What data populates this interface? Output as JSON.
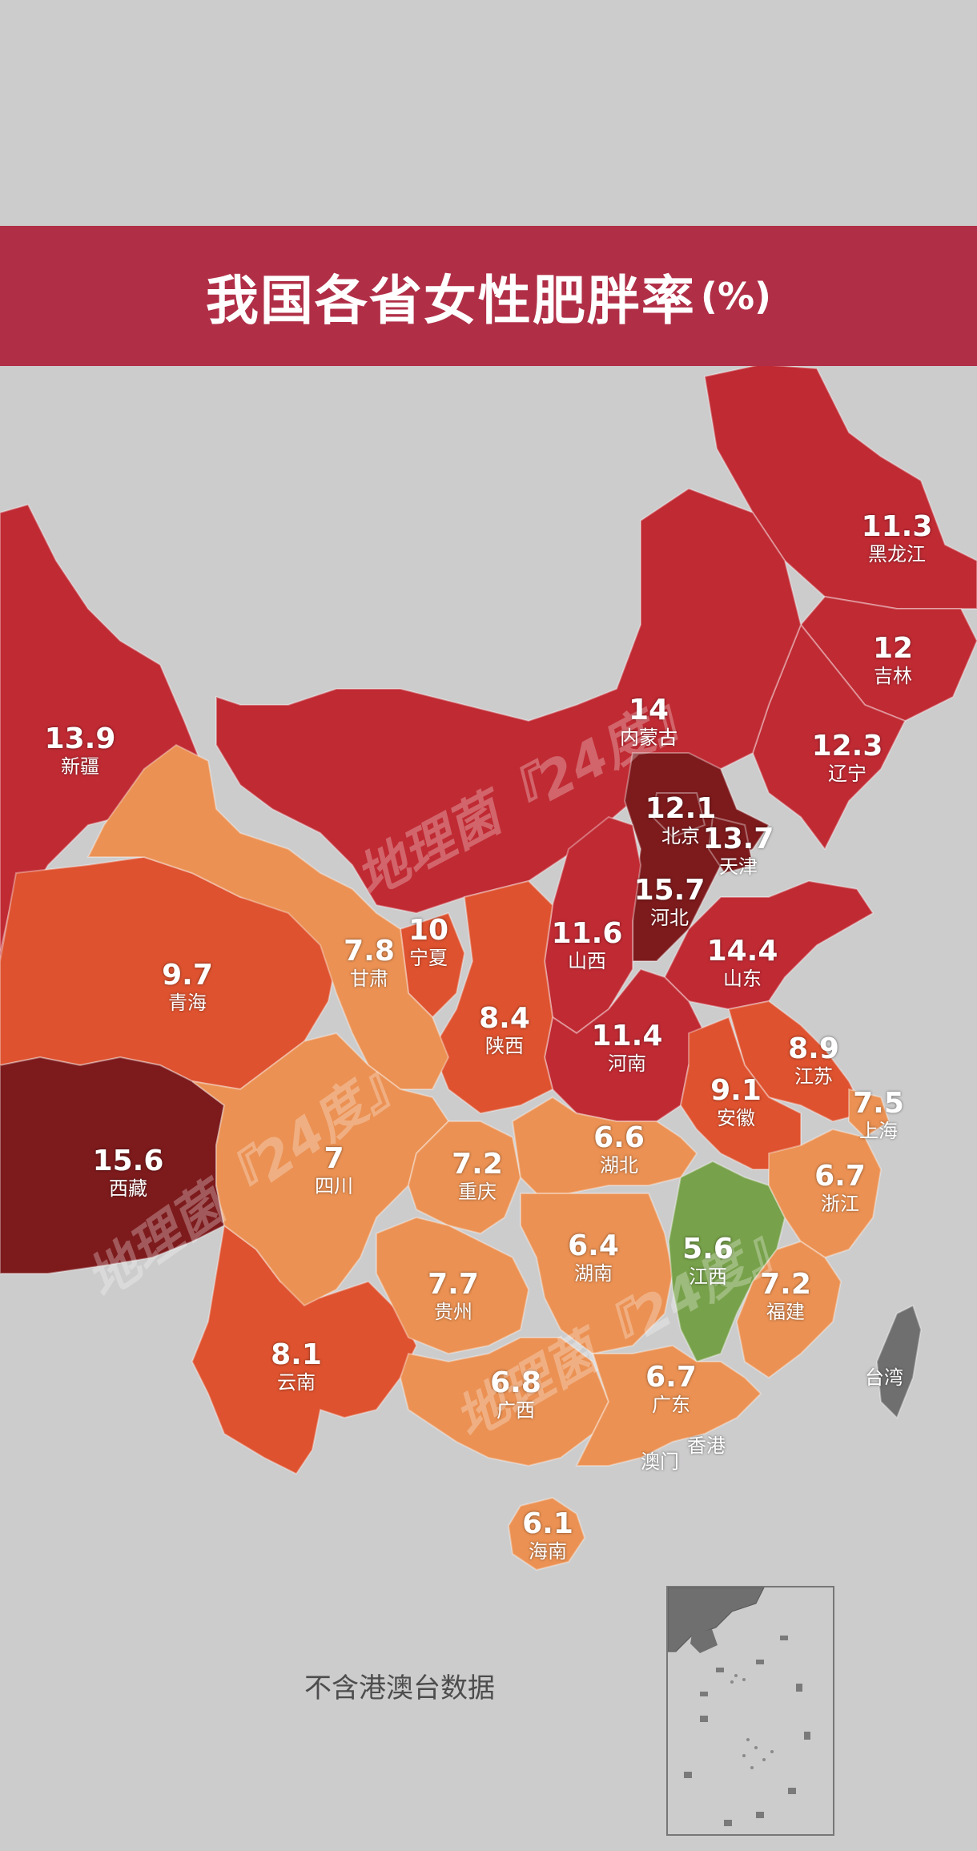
{
  "title": "我国各省女性肥胖率",
  "unit": "(%)",
  "note": "不含港澳台数据",
  "watermark": "地理菌『24度』",
  "colors": {
    "background": "#cdcccd",
    "banner": "#b02f47",
    "very_high": "#7d1a1c",
    "high": "#c02a33",
    "mid": "#de522f",
    "low": "#eb9153",
    "lowest": "#77a14a",
    "no_data": "#6f6f6f"
  },
  "provinces": [
    {
      "name": "黑龙江",
      "value": "11.3",
      "tier": "high"
    },
    {
      "name": "吉林",
      "value": "12",
      "tier": "high"
    },
    {
      "name": "辽宁",
      "value": "12.3",
      "tier": "high"
    },
    {
      "name": "内蒙古",
      "value": "14",
      "tier": "high"
    },
    {
      "name": "新疆",
      "value": "13.9",
      "tier": "high"
    },
    {
      "name": "北京",
      "value": "12.1",
      "tier": "very_high"
    },
    {
      "name": "天津",
      "value": "13.7",
      "tier": "very_high"
    },
    {
      "name": "河北",
      "value": "15.7",
      "tier": "very_high"
    },
    {
      "name": "山西",
      "value": "11.6",
      "tier": "high"
    },
    {
      "name": "山东",
      "value": "14.4",
      "tier": "high"
    },
    {
      "name": "宁夏",
      "value": "10",
      "tier": "mid"
    },
    {
      "name": "甘肃",
      "value": "7.8",
      "tier": "low"
    },
    {
      "name": "青海",
      "value": "9.7",
      "tier": "mid"
    },
    {
      "name": "陕西",
      "value": "8.4",
      "tier": "mid"
    },
    {
      "name": "河南",
      "value": "11.4",
      "tier": "high"
    },
    {
      "name": "江苏",
      "value": "8.9",
      "tier": "mid"
    },
    {
      "name": "安徽",
      "value": "9.1",
      "tier": "mid"
    },
    {
      "name": "上海",
      "value": "7.5",
      "tier": "low"
    },
    {
      "name": "西藏",
      "value": "15.6",
      "tier": "very_high"
    },
    {
      "name": "四川",
      "value": "7",
      "tier": "low"
    },
    {
      "name": "重庆",
      "value": "7.2",
      "tier": "low"
    },
    {
      "name": "湖北",
      "value": "6.6",
      "tier": "low"
    },
    {
      "name": "浙江",
      "value": "6.7",
      "tier": "low"
    },
    {
      "name": "湖南",
      "value": "6.4",
      "tier": "low"
    },
    {
      "name": "江西",
      "value": "5.6",
      "tier": "lowest"
    },
    {
      "name": "贵州",
      "value": "7.7",
      "tier": "low"
    },
    {
      "name": "福建",
      "value": "7.2",
      "tier": "low"
    },
    {
      "name": "云南",
      "value": "8.1",
      "tier": "mid"
    },
    {
      "name": "广西",
      "value": "6.8",
      "tier": "low"
    },
    {
      "name": "广东",
      "value": "6.7",
      "tier": "low"
    },
    {
      "name": "海南",
      "value": "6.1",
      "tier": "low"
    }
  ],
  "no_data_regions": [
    "台湾",
    "香港",
    "澳门"
  ]
}
